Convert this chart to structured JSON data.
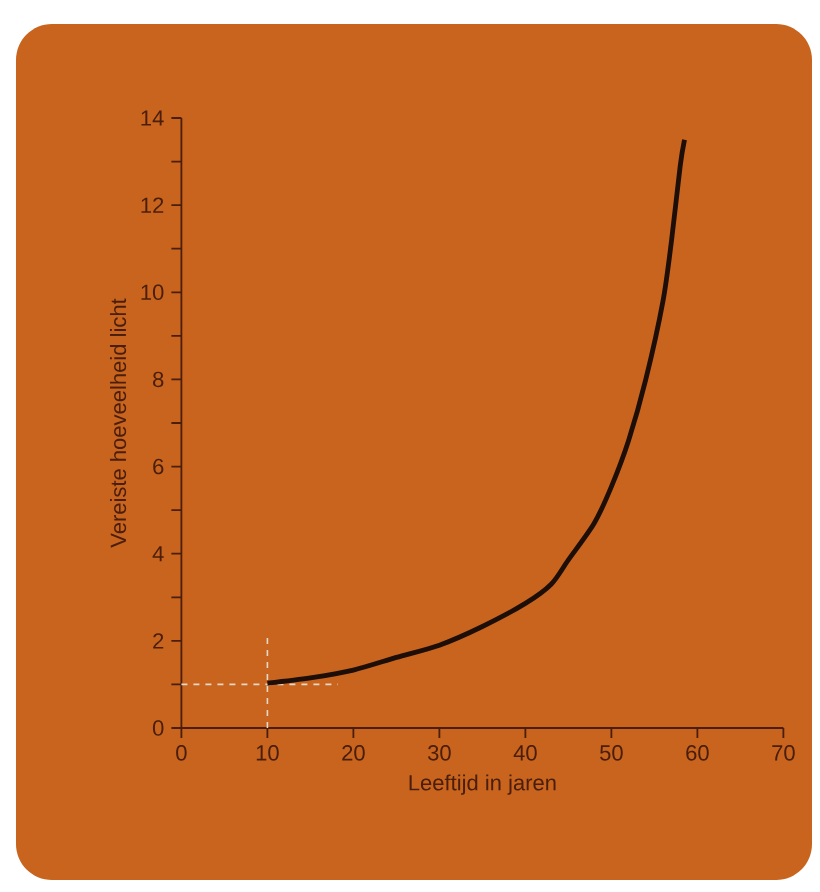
{
  "chart_data": {
    "type": "line",
    "xlabel": "Leeftijd in jaren",
    "ylabel": "Vereiste hoeveelheid licht",
    "x": [
      10,
      15,
      20,
      25,
      30,
      35,
      40,
      43,
      45,
      48,
      50,
      52,
      54,
      56,
      57,
      58,
      58.5
    ],
    "series": [
      {
        "color": "#1e0e08",
        "values": [
          1.03,
          1.15,
          1.33,
          1.62,
          1.9,
          2.33,
          2.86,
          3.3,
          3.86,
          4.7,
          5.54,
          6.6,
          8.0,
          9.8,
          11.2,
          12.9,
          13.5
        ]
      }
    ],
    "xlim": [
      0,
      70
    ],
    "ylim": [
      0,
      14
    ],
    "xticks": [
      0,
      10,
      20,
      30,
      40,
      50,
      60,
      70
    ],
    "yticks": [
      0,
      2,
      4,
      6,
      8,
      10,
      12,
      14
    ],
    "ref_lines": [
      {
        "axis": "x",
        "value": 10,
        "color": "#e8d8c8",
        "line_style": "dashed"
      },
      {
        "axis": "y",
        "value": 1,
        "color": "#e8d8c8",
        "line_style": "dashed"
      }
    ],
    "grid": false,
    "marker": "none",
    "line_style": "solid"
  }
}
